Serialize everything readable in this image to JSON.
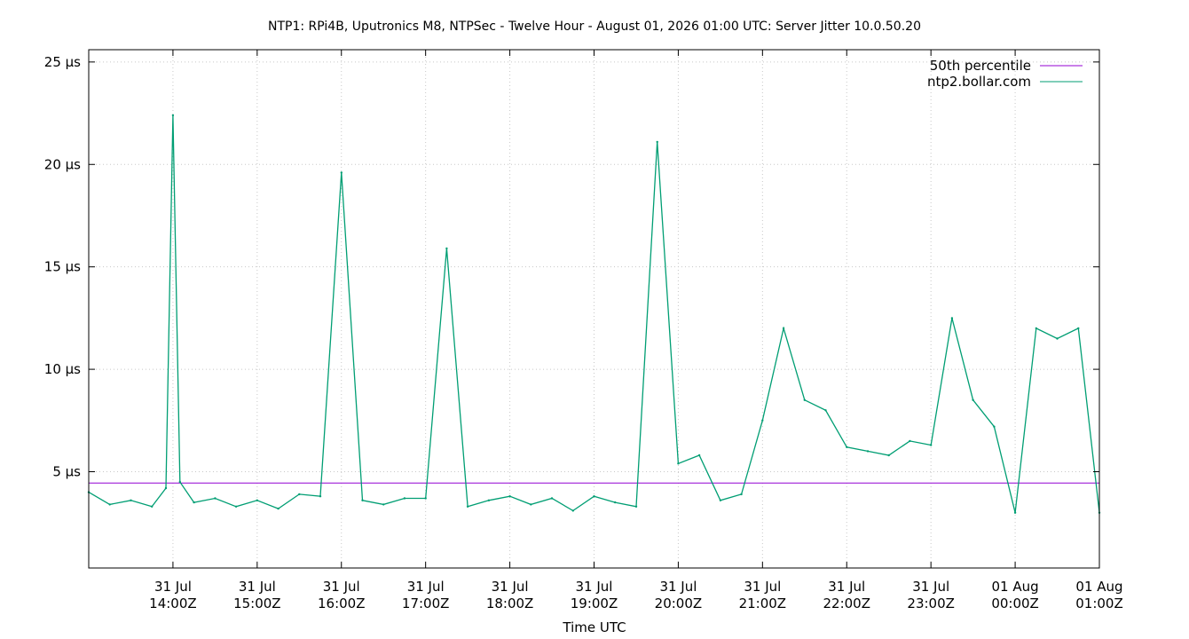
{
  "chart_data": {
    "type": "line",
    "title": "NTP1: RPi4B, Uputronics M8, NTPSec - Twelve Hour - August 01, 2026 01:00 UTC: Server Jitter 10.0.50.20",
    "xlabel": "Time UTC",
    "ylabel": "",
    "xlim": [
      "2026-07-31T13:00Z",
      "2026-08-01T01:00Z"
    ],
    "ylim": [
      0.3,
      25.6
    ],
    "y_unit": "µs",
    "grid": true,
    "legend_position": "top-right",
    "x_ticks": [
      {
        "t": "2026-07-31T14:00Z",
        "line1": "31 Jul",
        "line2": "14:00Z"
      },
      {
        "t": "2026-07-31T15:00Z",
        "line1": "31 Jul",
        "line2": "15:00Z"
      },
      {
        "t": "2026-07-31T16:00Z",
        "line1": "31 Jul",
        "line2": "16:00Z"
      },
      {
        "t": "2026-07-31T17:00Z",
        "line1": "31 Jul",
        "line2": "17:00Z"
      },
      {
        "t": "2026-07-31T18:00Z",
        "line1": "31 Jul",
        "line2": "18:00Z"
      },
      {
        "t": "2026-07-31T19:00Z",
        "line1": "31 Jul",
        "line2": "19:00Z"
      },
      {
        "t": "2026-07-31T20:00Z",
        "line1": "31 Jul",
        "line2": "20:00Z"
      },
      {
        "t": "2026-07-31T21:00Z",
        "line1": "31 Jul",
        "line2": "21:00Z"
      },
      {
        "t": "2026-07-31T22:00Z",
        "line1": "31 Jul",
        "line2": "22:00Z"
      },
      {
        "t": "2026-07-31T23:00Z",
        "line1": "31 Jul",
        "line2": "23:00Z"
      },
      {
        "t": "2026-08-01T00:00Z",
        "line1": "01 Aug",
        "line2": "00:00Z"
      },
      {
        "t": "2026-08-01T01:00Z",
        "line1": "01 Aug",
        "line2": "01:00Z"
      }
    ],
    "y_ticks": [
      {
        "value": 5,
        "label": "5 µs"
      },
      {
        "value": 10,
        "label": "10 µs"
      },
      {
        "value": 15,
        "label": "15 µs"
      },
      {
        "value": 20,
        "label": "20 µs"
      },
      {
        "value": 25,
        "label": "25 µs"
      }
    ],
    "series": [
      {
        "name": "50th percentile",
        "color": "#9400d3",
        "x": [
          "2026-07-31T13:00Z",
          "2026-08-01T01:00Z"
        ],
        "y": [
          4.45,
          4.45
        ]
      },
      {
        "name": "ntp2.bollar.com",
        "color": "#009e73",
        "x": [
          "2026-07-31T13:00Z",
          "2026-07-31T13:15Z",
          "2026-07-31T13:30Z",
          "2026-07-31T13:45Z",
          "2026-07-31T13:55Z",
          "2026-07-31T14:00Z",
          "2026-07-31T14:05Z",
          "2026-07-31T14:15Z",
          "2026-07-31T14:30Z",
          "2026-07-31T14:45Z",
          "2026-07-31T15:00Z",
          "2026-07-31T15:15Z",
          "2026-07-31T15:30Z",
          "2026-07-31T15:45Z",
          "2026-07-31T16:00Z",
          "2026-07-31T16:15Z",
          "2026-07-31T16:30Z",
          "2026-07-31T16:45Z",
          "2026-07-31T17:00Z",
          "2026-07-31T17:15Z",
          "2026-07-31T17:30Z",
          "2026-07-31T17:45Z",
          "2026-07-31T18:00Z",
          "2026-07-31T18:15Z",
          "2026-07-31T18:30Z",
          "2026-07-31T18:45Z",
          "2026-07-31T19:00Z",
          "2026-07-31T19:15Z",
          "2026-07-31T19:30Z",
          "2026-07-31T19:45Z",
          "2026-07-31T20:00Z",
          "2026-07-31T20:15Z",
          "2026-07-31T20:30Z",
          "2026-07-31T20:45Z",
          "2026-07-31T21:00Z",
          "2026-07-31T21:15Z",
          "2026-07-31T21:30Z",
          "2026-07-31T21:45Z",
          "2026-07-31T22:00Z",
          "2026-07-31T22:15Z",
          "2026-07-31T22:30Z",
          "2026-07-31T22:45Z",
          "2026-07-31T23:00Z",
          "2026-07-31T23:15Z",
          "2026-07-31T23:30Z",
          "2026-07-31T23:45Z",
          "2026-08-01T00:00Z",
          "2026-08-01T00:15Z",
          "2026-08-01T00:30Z",
          "2026-08-01T00:45Z",
          "2026-08-01T01:00Z"
        ],
        "y": [
          4.0,
          3.4,
          3.6,
          3.3,
          4.2,
          22.4,
          4.5,
          3.5,
          3.7,
          3.3,
          3.6,
          3.2,
          3.9,
          3.8,
          19.6,
          3.6,
          3.4,
          3.7,
          3.7,
          15.9,
          3.3,
          3.6,
          3.8,
          3.4,
          3.7,
          3.1,
          3.8,
          3.5,
          3.3,
          21.1,
          5.4,
          5.8,
          3.6,
          3.9,
          7.5,
          12.0,
          8.5,
          8.0,
          6.2,
          6.0,
          5.8,
          6.5,
          6.3,
          12.5,
          8.5,
          7.2,
          3.0,
          12.0,
          11.5,
          12.0,
          3.0
        ]
      }
    ]
  }
}
